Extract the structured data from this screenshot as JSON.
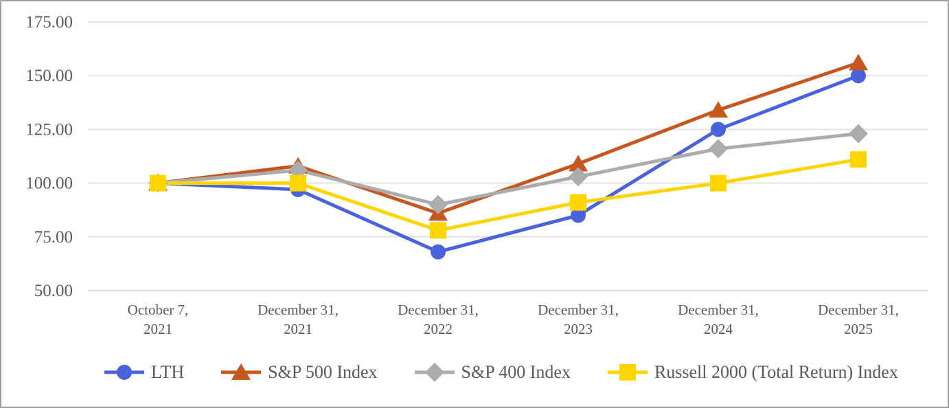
{
  "chart_data": {
    "type": "line",
    "title": "",
    "xlabel": "",
    "ylabel": "",
    "grid": true,
    "legend_position": "bottom",
    "ylim": [
      50,
      175
    ],
    "y_ticks": [
      175,
      150,
      125,
      100,
      75,
      50
    ],
    "y_tick_labels": [
      "175.00",
      "150.00",
      "125.00",
      "100.00",
      "75.00",
      "50.00"
    ],
    "categories": [
      "October 7, 2021",
      "December 31, 2021",
      "December 31, 2022",
      "December 31, 2023",
      "December 31, 2024",
      "December 31, 2025"
    ],
    "category_label_lines": [
      [
        "October 7,",
        "2021"
      ],
      [
        "December 31,",
        "2021"
      ],
      [
        "December 31,",
        "2022"
      ],
      [
        "December 31,",
        "2023"
      ],
      [
        "December 31,",
        "2024"
      ],
      [
        "December 31,",
        "2025"
      ]
    ],
    "series": [
      {
        "name": "LTH",
        "marker": "circle",
        "color": "#4a63dd",
        "values": [
          100,
          97,
          68,
          85,
          125,
          150
        ]
      },
      {
        "name": "S&P 500 Index",
        "marker": "triangle",
        "color": "#c5571f",
        "values": [
          100,
          108,
          86,
          109,
          134,
          156
        ]
      },
      {
        "name": "S&P 400 Index",
        "marker": "diamond",
        "color": "#acacac",
        "values": [
          100,
          106,
          90,
          103,
          116,
          123
        ]
      },
      {
        "name": "Russell 2000 (Total Return) Index",
        "marker": "square",
        "color": "#ffd500",
        "values": [
          100,
          100,
          78,
          91,
          100,
          111
        ]
      }
    ]
  },
  "style": {
    "gridline_color": "#e2e2e2",
    "axis_text_color": "#595959",
    "legend_text_color": "#595959",
    "border_color": "#9e9e9e",
    "background_color": "#ffffff"
  }
}
